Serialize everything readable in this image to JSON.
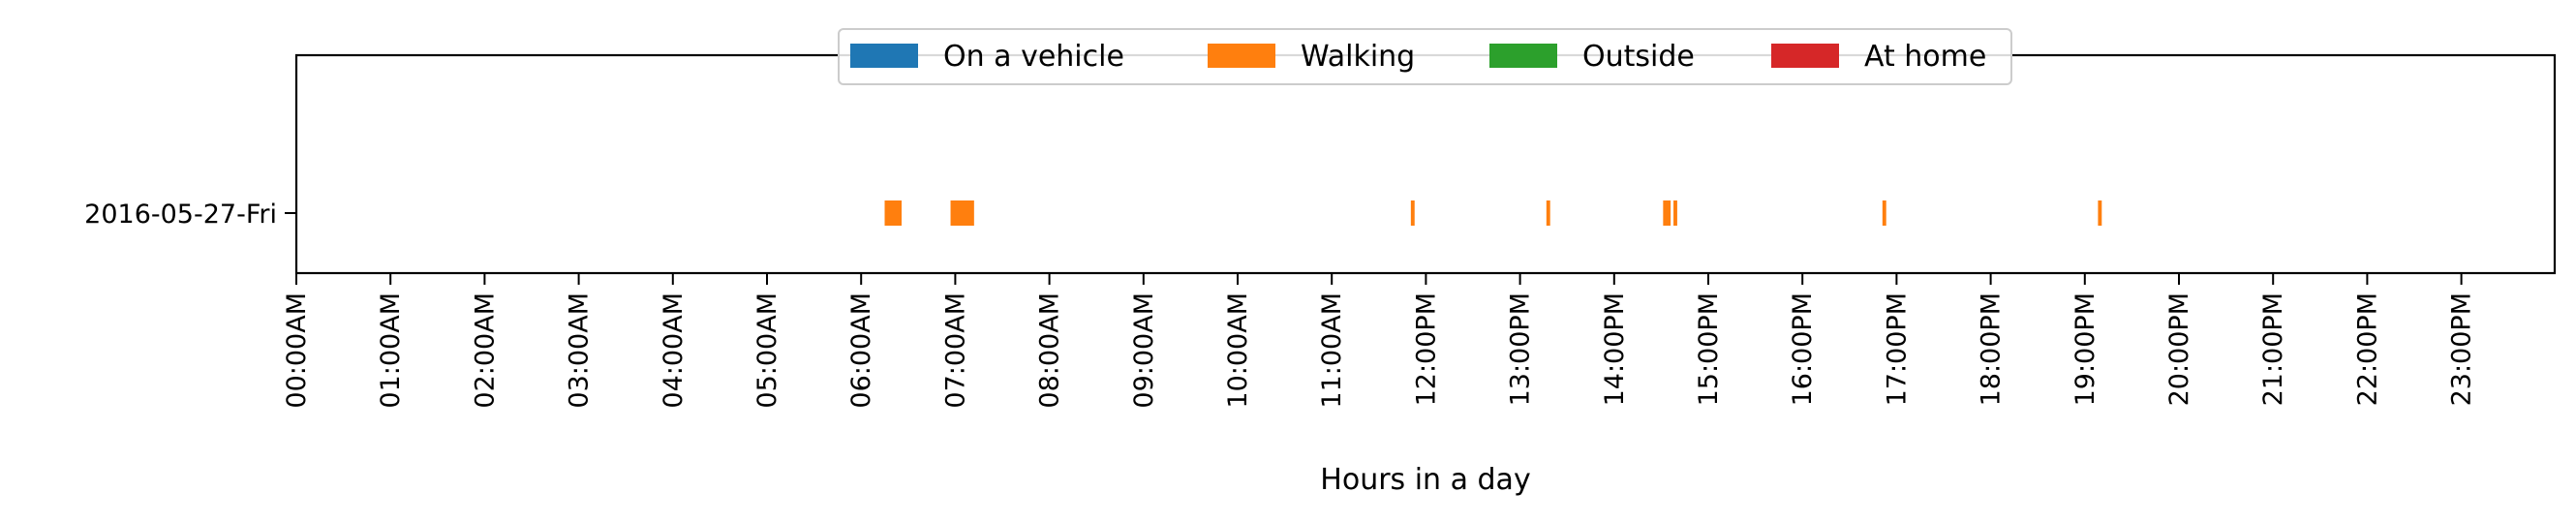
{
  "chart_data": {
    "type": "timeline",
    "xlabel": "Hours in a day",
    "xlim": [
      0,
      24
    ],
    "xticks": [
      "00:00AM",
      "01:00AM",
      "02:00AM",
      "03:00AM",
      "04:00AM",
      "05:00AM",
      "06:00AM",
      "07:00AM",
      "08:00AM",
      "09:00AM",
      "10:00AM",
      "11:00AM",
      "12:00PM",
      "13:00PM",
      "14:00PM",
      "15:00PM",
      "16:00PM",
      "17:00PM",
      "18:00PM",
      "19:00PM",
      "20:00PM",
      "21:00PM",
      "22:00PM",
      "23:00PM"
    ],
    "categories": [
      "2016-05-27-Fri"
    ],
    "legend_position": "top-center",
    "series": [
      {
        "name": "On a vehicle",
        "color": "#1f77b4",
        "intervals": []
      },
      {
        "name": "Walking",
        "color": "#ff7f0e",
        "intervals": [
          {
            "day": "2016-05-27-Fri",
            "start": 6.25,
            "end": 6.43
          },
          {
            "day": "2016-05-27-Fri",
            "start": 6.95,
            "end": 7.2
          },
          {
            "day": "2016-05-27-Fri",
            "start": 11.84,
            "end": 11.88
          },
          {
            "day": "2016-05-27-Fri",
            "start": 13.28,
            "end": 13.32
          },
          {
            "day": "2016-05-27-Fri",
            "start": 14.52,
            "end": 14.6
          },
          {
            "day": "2016-05-27-Fri",
            "start": 14.63,
            "end": 14.67
          },
          {
            "day": "2016-05-27-Fri",
            "start": 16.85,
            "end": 16.89
          },
          {
            "day": "2016-05-27-Fri",
            "start": 19.14,
            "end": 19.18
          }
        ]
      },
      {
        "name": "Outside",
        "color": "#2ca02c",
        "intervals": []
      },
      {
        "name": "At home",
        "color": "#d62728",
        "intervals": []
      }
    ]
  }
}
